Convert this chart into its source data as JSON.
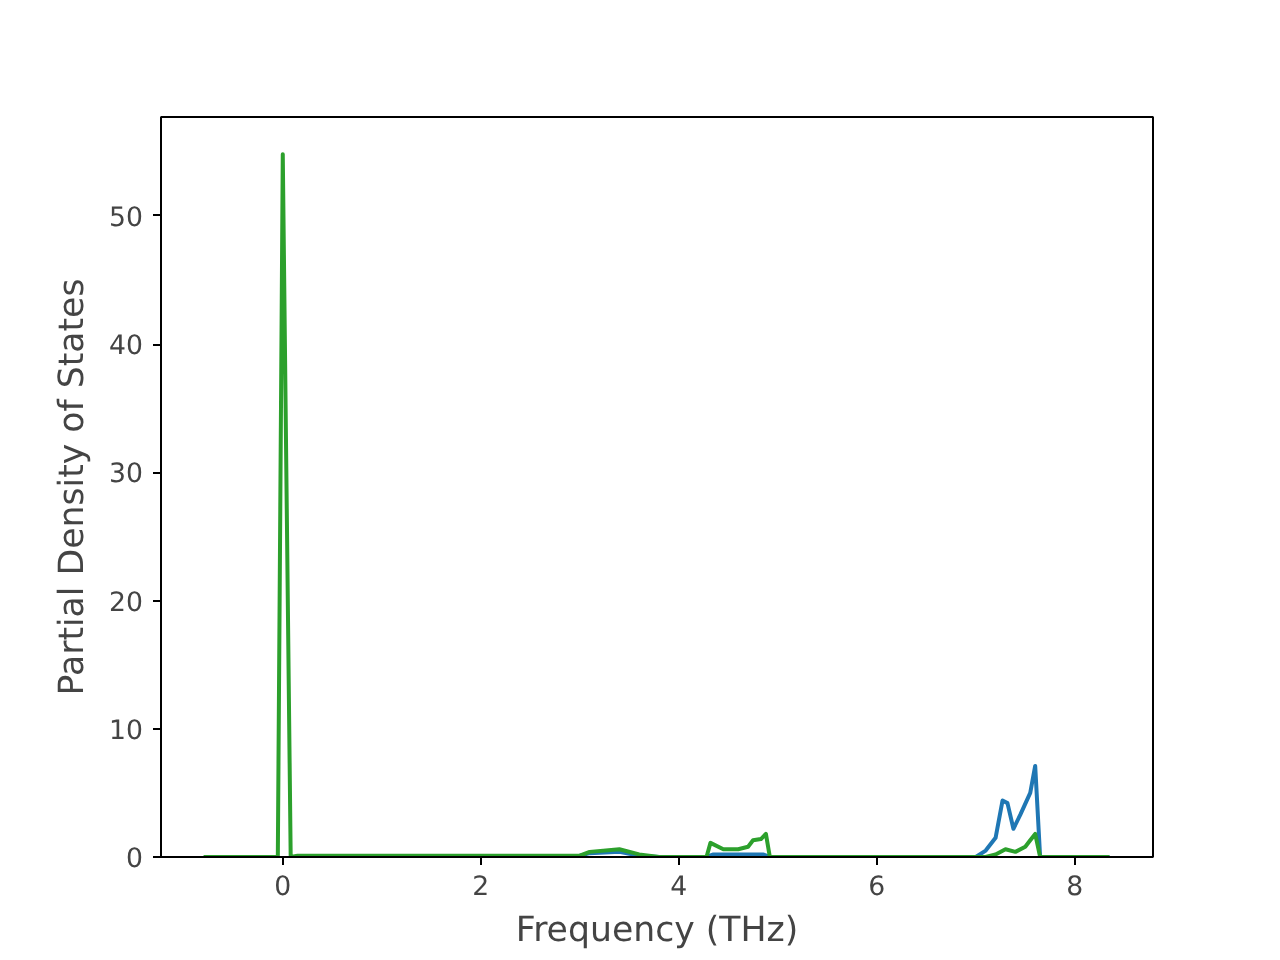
{
  "chart_data": {
    "type": "line",
    "xlabel": "Frequency (THz)",
    "ylabel": "Partial Density of States",
    "xlim": [
      -1.23,
      8.79
    ],
    "ylim": [
      0,
      57.7
    ],
    "xticks": [
      0,
      2,
      4,
      6,
      8
    ],
    "yticks": [
      0,
      10,
      20,
      30,
      40,
      50
    ],
    "grid": false,
    "marker": "none",
    "line_style": "solid",
    "series": [
      {
        "color": "#1f77b4",
        "x": [
          3.0,
          3.1,
          3.4,
          3.6,
          3.8,
          4.28,
          4.35,
          4.85,
          4.92,
          7.0,
          7.1,
          7.2,
          7.27,
          7.32,
          7.38,
          7.45,
          7.55,
          7.6,
          7.65,
          8.35
        ],
        "values": [
          0.1,
          0.3,
          0.4,
          0.1,
          0,
          0,
          0.2,
          0.2,
          0,
          0,
          0.5,
          1.5,
          4.4,
          4.2,
          2.2,
          3.3,
          5,
          7.1,
          0,
          0
        ]
      },
      {
        "color": "#2ca02c",
        "x": [
          -0.8,
          -0.05,
          0,
          0.08,
          0.15,
          3.0,
          3.1,
          3.4,
          3.6,
          3.8,
          4.28,
          4.32,
          4.45,
          4.6,
          4.7,
          4.75,
          4.83,
          4.88,
          4.92,
          7.1,
          7.2,
          7.3,
          7.4,
          7.5,
          7.55,
          7.6,
          7.65,
          8.35
        ],
        "values": [
          0,
          0,
          54.8,
          0,
          0.1,
          0.1,
          0.4,
          0.6,
          0.2,
          0,
          0,
          1.1,
          0.6,
          0.6,
          0.8,
          1.3,
          1.4,
          1.8,
          0,
          0,
          0.2,
          0.6,
          0.4,
          0.8,
          1.3,
          1.8,
          0,
          0
        ]
      }
    ]
  }
}
